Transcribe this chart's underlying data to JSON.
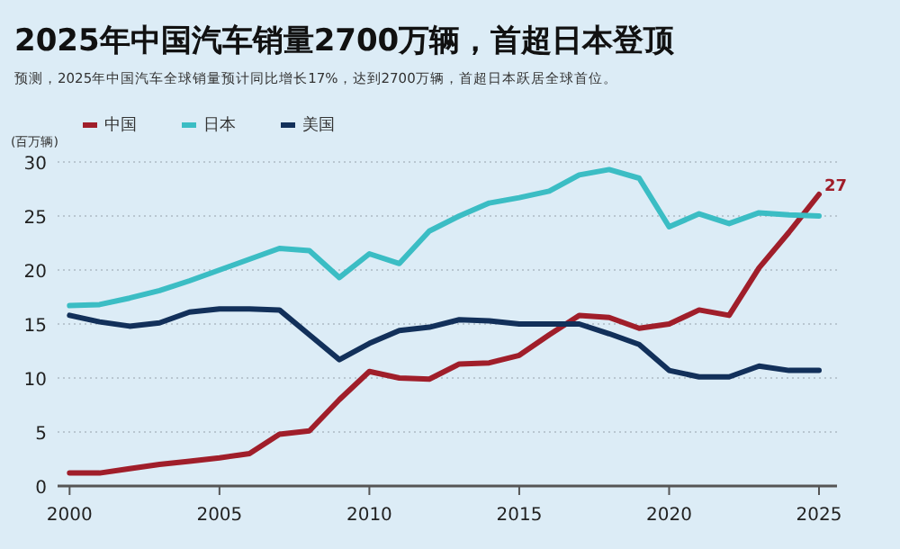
{
  "chart_data": {
    "type": "line",
    "title": "2025年中国汽车销量2700万辆，首超日本登顶",
    "subtitle": "预测，2025年中国汽车全球销量预计同比增长17%，达到2700万辆，首超日本跃居全球首位。",
    "ylabel": "(百万辆)",
    "x": [
      2000,
      2001,
      2002,
      2003,
      2004,
      2005,
      2006,
      2007,
      2008,
      2009,
      2010,
      2011,
      2012,
      2013,
      2014,
      2015,
      2016,
      2017,
      2018,
      2019,
      2020,
      2021,
      2022,
      2023,
      2024,
      2025
    ],
    "series": [
      {
        "name": "中国",
        "color": "#a01e2a",
        "values": [
          1.2,
          1.2,
          1.6,
          2.0,
          2.3,
          2.6,
          3.0,
          4.8,
          5.1,
          8.0,
          10.6,
          10.0,
          9.9,
          11.3,
          11.4,
          12.1,
          14.0,
          15.8,
          15.6,
          14.6,
          15.0,
          16.3,
          15.8,
          20.2,
          23.5,
          27
        ]
      },
      {
        "name": "日本",
        "color": "#3bbdc4",
        "values": [
          16.7,
          16.8,
          17.4,
          18.1,
          19.0,
          20.0,
          21.0,
          22.0,
          21.8,
          19.3,
          21.5,
          20.6,
          23.6,
          25.0,
          26.2,
          26.7,
          27.3,
          28.8,
          29.3,
          28.5,
          24.0,
          25.2,
          24.3,
          25.3,
          25.1,
          25.0
        ]
      },
      {
        "name": "美国",
        "color": "#12305a",
        "values": [
          15.8,
          15.2,
          14.8,
          15.1,
          16.1,
          16.4,
          16.4,
          16.3,
          14.0,
          11.7,
          13.2,
          14.4,
          14.7,
          15.4,
          15.3,
          15.0,
          15.0,
          15.0,
          14.1,
          13.1,
          10.7,
          10.1,
          10.1,
          11.1,
          10.7,
          10.7
        ]
      }
    ],
    "annotations": [
      {
        "text": "27",
        "x": 2025,
        "y": 27
      }
    ],
    "xlim": [
      1999.6,
      2025.6
    ],
    "xticks": [
      2000,
      2005,
      2010,
      2015,
      2020,
      2025
    ],
    "ylim": [
      0,
      30
    ],
    "yticks": [
      0,
      5,
      10,
      15,
      20,
      25,
      30
    ],
    "grid": "y",
    "legend": "top left",
    "line_style": "solid",
    "marker": "none"
  }
}
